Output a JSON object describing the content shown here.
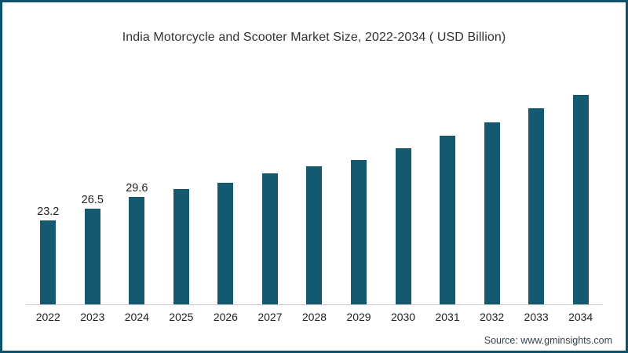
{
  "title": "India Motorcycle and Scooter Market Size, 2022-2034 ( USD Billion)",
  "source": "Source: www.gminsights.com",
  "colors": {
    "bar": "#14596f",
    "frame_border": "#0f506b",
    "axis_line": "#cccccc",
    "title_text": "#333333",
    "label_text": "#222222",
    "source_text": "#36454f"
  },
  "chart_data": {
    "type": "bar",
    "title": "India Motorcycle and Scooter Market Size, 2022-2034 ( USD Billion)",
    "xlabel": "",
    "ylabel": "USD Billion",
    "ylim": [
      0,
      60
    ],
    "grid": false,
    "legend": false,
    "categories": [
      "2022",
      "2023",
      "2024",
      "2025",
      "2026",
      "2027",
      "2028",
      "2029",
      "2030",
      "2031",
      "2032",
      "2033",
      "2034"
    ],
    "values": [
      23.2,
      26.5,
      29.6,
      31.8,
      33.6,
      36.3,
      38.1,
      40.0,
      43.1,
      46.7,
      50.3,
      54.2,
      57.9
    ],
    "visible_value_labels": [
      "23.2",
      "26.5",
      "29.6",
      null,
      null,
      null,
      null,
      null,
      null,
      null,
      null,
      null,
      null
    ]
  }
}
